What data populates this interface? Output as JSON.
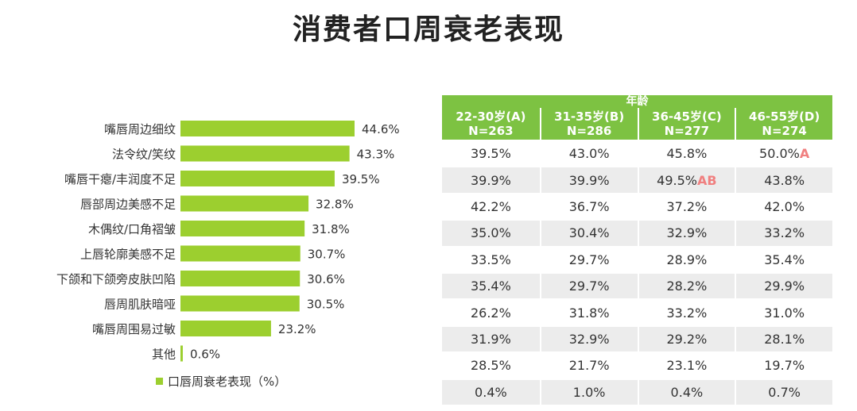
{
  "page_title": "消费者口周衰老表现",
  "colors": {
    "bar": "#9ccf2f",
    "table_header": "#7dc242"
  },
  "chart_data": {
    "type": "bar",
    "orientation": "horizontal",
    "categories": [
      "嘴唇周边细纹",
      "法令纹/笑纹",
      "嘴唇干瘪/丰润度不足",
      "唇部周边美感不足",
      "木偶纹/口角褶皱",
      "上唇轮廓美感不足",
      "下颌和下颌旁皮肤凹陷",
      "唇周肌肤暗哑",
      "嘴唇周围易过敏",
      "其他"
    ],
    "series": [
      {
        "name": "口唇周衰老表现（%）",
        "values": [
          44.6,
          43.3,
          39.5,
          32.8,
          31.8,
          30.7,
          30.6,
          30.5,
          23.2,
          0.6
        ],
        "labels": [
          "44.6%",
          "43.3%",
          "39.5%",
          "32.8%",
          "31.8%",
          "30.7%",
          "30.6%",
          "30.5%",
          "23.2%",
          "0.6%"
        ]
      }
    ],
    "xlim": [
      0,
      44.6
    ]
  },
  "table": {
    "group_header": "年龄",
    "columns": [
      {
        "line1": "22-30岁(A)",
        "line2": "N=263"
      },
      {
        "line1": "31-35岁(B)",
        "line2": "N=286"
      },
      {
        "line1": "36-45岁(C)",
        "line2": "N=277"
      },
      {
        "line1": "46-55岁(D)",
        "line2": "N=274"
      }
    ],
    "rows": [
      [
        {
          "v": "39.5%",
          "s": ""
        },
        {
          "v": "43.0%",
          "s": ""
        },
        {
          "v": "45.8%",
          "s": ""
        },
        {
          "v": "50.0%",
          "s": "A"
        }
      ],
      [
        {
          "v": "39.9%",
          "s": ""
        },
        {
          "v": "39.9%",
          "s": ""
        },
        {
          "v": "49.5%",
          "s": "AB"
        },
        {
          "v": "43.8%",
          "s": ""
        }
      ],
      [
        {
          "v": "42.2%",
          "s": ""
        },
        {
          "v": "36.7%",
          "s": ""
        },
        {
          "v": "37.2%",
          "s": ""
        },
        {
          "v": "42.0%",
          "s": ""
        }
      ],
      [
        {
          "v": "35.0%",
          "s": ""
        },
        {
          "v": "30.4%",
          "s": ""
        },
        {
          "v": "32.9%",
          "s": ""
        },
        {
          "v": "33.2%",
          "s": ""
        }
      ],
      [
        {
          "v": "33.5%",
          "s": ""
        },
        {
          "v": "29.7%",
          "s": ""
        },
        {
          "v": "28.9%",
          "s": ""
        },
        {
          "v": "35.4%",
          "s": ""
        }
      ],
      [
        {
          "v": "35.4%",
          "s": ""
        },
        {
          "v": "29.7%",
          "s": ""
        },
        {
          "v": "28.2%",
          "s": ""
        },
        {
          "v": "29.9%",
          "s": ""
        }
      ],
      [
        {
          "v": "26.2%",
          "s": ""
        },
        {
          "v": "31.8%",
          "s": ""
        },
        {
          "v": "33.2%",
          "s": ""
        },
        {
          "v": "31.0%",
          "s": ""
        }
      ],
      [
        {
          "v": "31.9%",
          "s": ""
        },
        {
          "v": "32.9%",
          "s": ""
        },
        {
          "v": "29.2%",
          "s": ""
        },
        {
          "v": "28.1%",
          "s": ""
        }
      ],
      [
        {
          "v": "28.5%",
          "s": ""
        },
        {
          "v": "21.7%",
          "s": ""
        },
        {
          "v": "23.1%",
          "s": ""
        },
        {
          "v": "19.7%",
          "s": ""
        }
      ],
      [
        {
          "v": "0.4%",
          "s": ""
        },
        {
          "v": "1.0%",
          "s": ""
        },
        {
          "v": "0.4%",
          "s": ""
        },
        {
          "v": "0.7%",
          "s": ""
        }
      ]
    ]
  }
}
